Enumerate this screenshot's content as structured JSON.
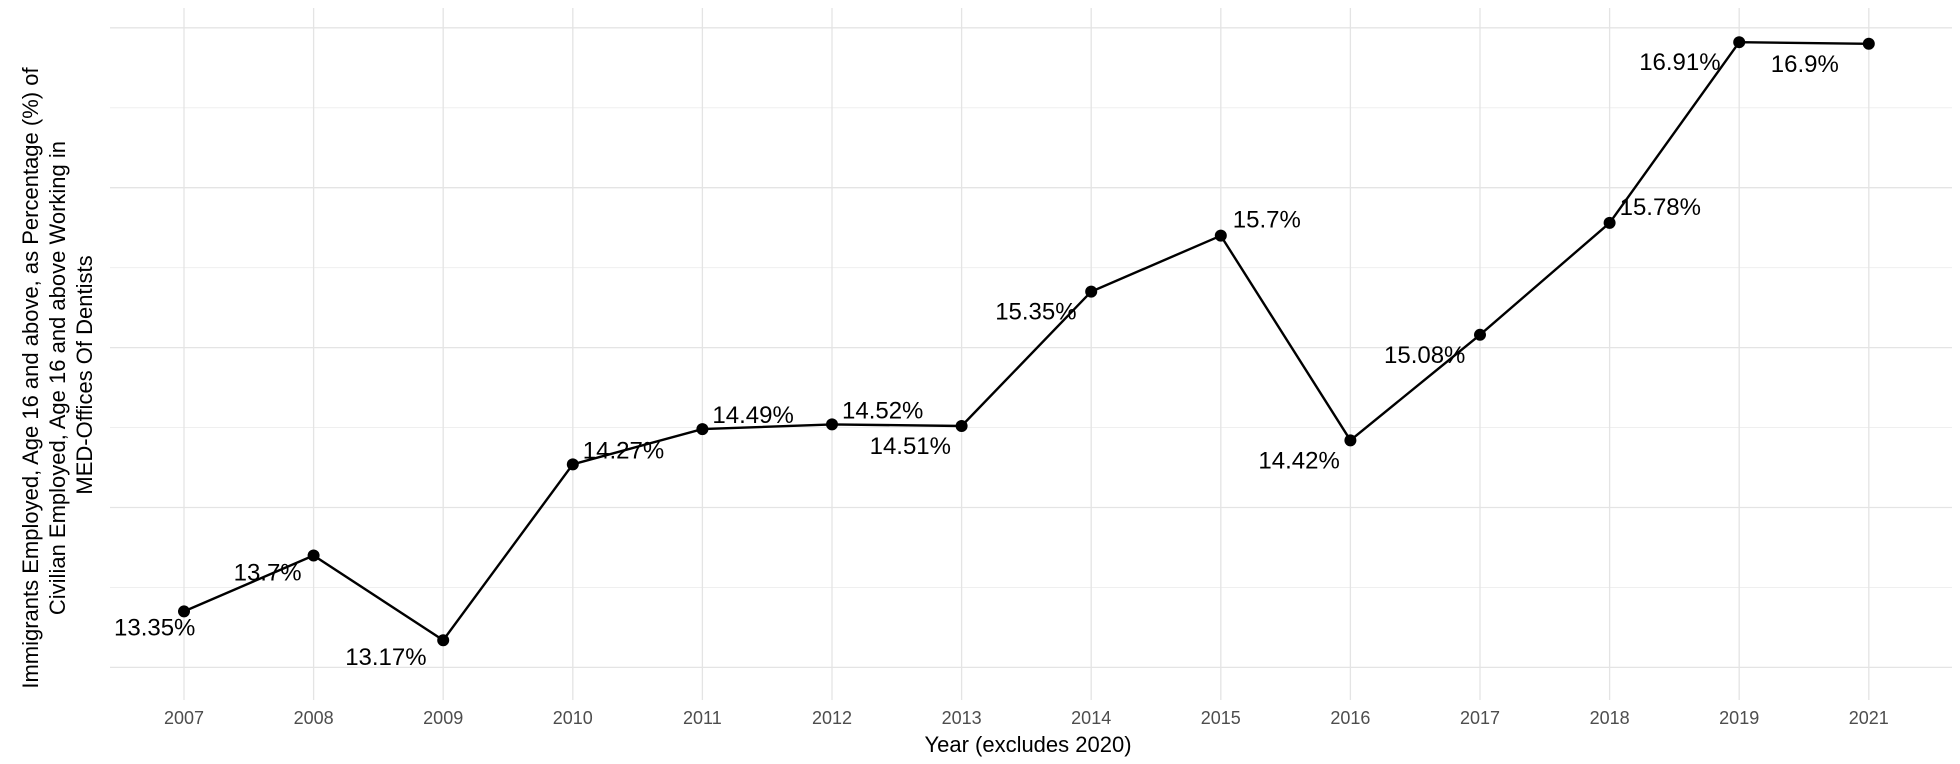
{
  "chart_data": {
    "type": "line",
    "title": "",
    "xlabel": "Year (excludes 2020)",
    "ylabel_lines": [
      "Immigrants Employed, Age 16 and above, as Percentage (%) of",
      "Civilian Employed, Age 16 and above Working in",
      "MED-Offices Of Dentists"
    ],
    "categories": [
      "2007",
      "2008",
      "2009",
      "2010",
      "2011",
      "2012",
      "2013",
      "2014",
      "2015",
      "2016",
      "2017",
      "2018",
      "2019",
      "2021"
    ],
    "values": [
      13.35,
      13.7,
      13.17,
      14.27,
      14.49,
      14.52,
      14.51,
      15.35,
      15.7,
      14.42,
      15.08,
      15.78,
      16.91,
      16.9
    ],
    "data_labels": [
      "13.35%",
      "13.7%",
      "13.17%",
      "14.27%",
      "14.49%",
      "14.52%",
      "14.51%",
      "15.35%",
      "15.7%",
      "14.42%",
      "15.08%",
      "15.78%",
      "16.91%",
      "16.9%"
    ],
    "ylim": [
      13.0,
      17.0
    ],
    "y_ticks_shown": false,
    "grid": true,
    "legend": "none",
    "line_color": "#000000",
    "point_color": "#000000"
  }
}
